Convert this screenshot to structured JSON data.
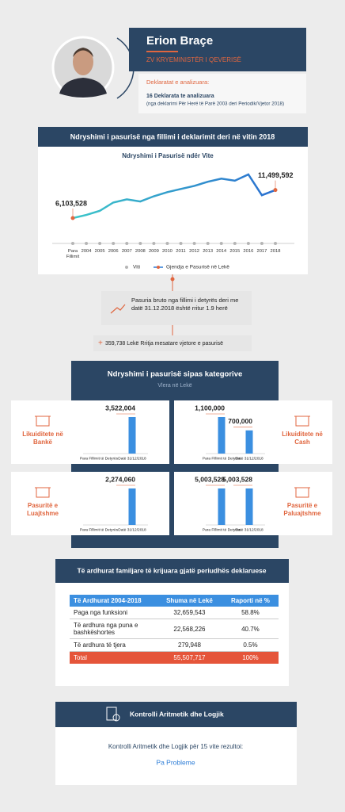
{
  "header": {
    "name": "Erion Braçe",
    "role": "ZV KRYEMINISTËR I QEVERISË",
    "declarations_label": "Deklaratat e analizuara:",
    "declarations_count": "16 Deklarata te analizuara",
    "declarations_range": "(nga deklarimi Për Herë të Parë 2003 deri Periodik/Vjetor 2018)"
  },
  "section_growth": {
    "title": "Ndryshimi i pasurisë nga fillimi i deklarimit deri në vitin 2018",
    "growth_note": "Pasuria bruto nga fillimi i detyrës deri me datë 31.12.2018 është rritur 1.9 herë",
    "average_note": "359,738 Lekë Rritja mesatare vjetore e pasurisë"
  },
  "section_categories": {
    "title": "Ndryshimi i pasurisë sipas kategorive",
    "subtitle": "Vlera në Lekë"
  },
  "chart_data": [
    {
      "type": "line",
      "title": "Ndryshimi i Pasurisë ndër Vite",
      "x_label": "Viti",
      "categories": [
        "Para Fillimit",
        "2004",
        "2005",
        "2006",
        "2007",
        "2008",
        "2009",
        "2010",
        "2011",
        "2012",
        "2013",
        "2014",
        "2015",
        "2016",
        "2017",
        "2018"
      ],
      "series": [
        {
          "name": "Gjendja e Pasurisë në Lekë",
          "color": "#2a7bd6",
          "values": [
            6103528,
            6700000,
            7500000,
            9100000,
            9700000,
            9300000,
            10300000,
            11100000,
            11700000,
            12300000,
            13100000,
            13700000,
            13300000,
            14500000,
            10500000,
            11499592
          ],
          "value_labels": [
            "6,103,528",
            null,
            null,
            null,
            null,
            null,
            null,
            null,
            null,
            null,
            null,
            null,
            null,
            null,
            null,
            "11,499,592"
          ]
        }
      ]
    },
    {
      "type": "bar",
      "title": "Likuiditete në Bankë",
      "categories": [
        "Para Fillimit të Detyrës",
        "Datë 31/12/2018"
      ],
      "values": [
        0,
        3522004
      ],
      "value_labels": [
        null,
        "3,522,004"
      ],
      "color": "#3b8fe0"
    },
    {
      "type": "bar",
      "title": "Likuiditete në Cash",
      "categories": [
        "Para Fillimit të Detyrës",
        "Datë 31/12/2018"
      ],
      "values": [
        1100000,
        700000
      ],
      "value_labels": [
        "1,100,000",
        "700,000"
      ],
      "color": "#3b8fe0"
    },
    {
      "type": "bar",
      "title": "Pasuritë e Luajtshme",
      "categories": [
        "Para Fillimit të Detyrës",
        "Datë 31/12/2018"
      ],
      "values": [
        0,
        2274060
      ],
      "value_labels": [
        null,
        "2,274,060"
      ],
      "color": "#3b8fe0"
    },
    {
      "type": "bar",
      "title": "Pasuritë e Paluajtshme",
      "categories": [
        "Para Fillimit të Detyrës",
        "Datë 31/12/2018"
      ],
      "values": [
        5003528,
        5003528
      ],
      "value_labels": [
        "5,003,528",
        "5,003,528"
      ],
      "color": "#3b8fe0"
    }
  ],
  "income_table": {
    "title": "Të ardhurat familjare të krijuara gjatë periudhës deklaruese",
    "columns": [
      "Të Ardhurat 2004-2018",
      "Shuma në Lekë",
      "Raporti në %"
    ],
    "rows": [
      [
        "Paga nga funksioni",
        "32,659,543",
        "58.8%"
      ],
      [
        "Të ardhura nga puna e bashkëshortes",
        "22,568,226",
        "40.7%"
      ],
      [
        "Të ardhura të tjera",
        "279,948",
        "0.5%"
      ]
    ],
    "total": [
      "Total",
      "55,507,717",
      "100%"
    ]
  },
  "check": {
    "title": "Kontrolli Aritmetik dhe Logjik",
    "text": "Kontrolli Aritmetik dhe Logjik për 15 vite rezultoi:",
    "result": "Pa Probleme"
  }
}
